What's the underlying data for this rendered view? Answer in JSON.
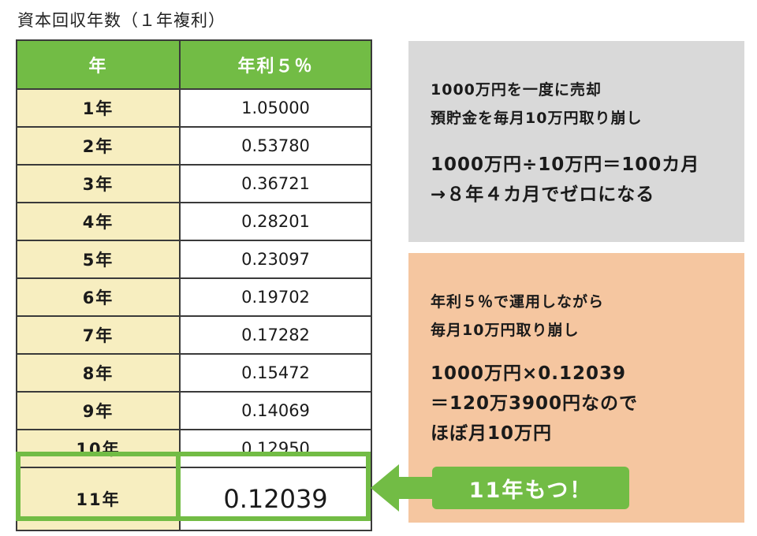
{
  "title": "資本回収年数（１年複利）",
  "table": {
    "headers": [
      "年",
      "年利５％"
    ],
    "rows": [
      {
        "year": "1年",
        "value": "1.05000"
      },
      {
        "year": "2年",
        "value": "0.53780"
      },
      {
        "year": "3年",
        "value": "0.36721"
      },
      {
        "year": "4年",
        "value": "0.28201"
      },
      {
        "year": "5年",
        "value": "0.23097"
      },
      {
        "year": "6年",
        "value": "0.19702"
      },
      {
        "year": "7年",
        "value": "0.17282"
      },
      {
        "year": "8年",
        "value": "0.15472"
      },
      {
        "year": "9年",
        "value": "0.14069"
      },
      {
        "year": "10年",
        "value": "0.12950"
      },
      {
        "year": "11年",
        "value": "0.12039"
      }
    ]
  },
  "gray_box": {
    "line1": "1000万円を一度に売却",
    "line2": "預貯金を毎月10万円取り崩し",
    "line3": "1000万円÷10万円＝100カ月",
    "line4": "→８年４カ月でゼロになる"
  },
  "orange_box": {
    "line1": "年利５％で運用しながら",
    "line2": "毎月10万円取り崩し",
    "line3": "1000万円×0.12039",
    "line4": "＝120万3900円なので",
    "line5": "ほぼ月10万円"
  },
  "badge": "11年もつ！",
  "colors": {
    "header_green": "#72bc45",
    "year_cell": "#f7eec0",
    "gray_box": "#d9d9d9",
    "orange_box": "#f5c6a0"
  }
}
